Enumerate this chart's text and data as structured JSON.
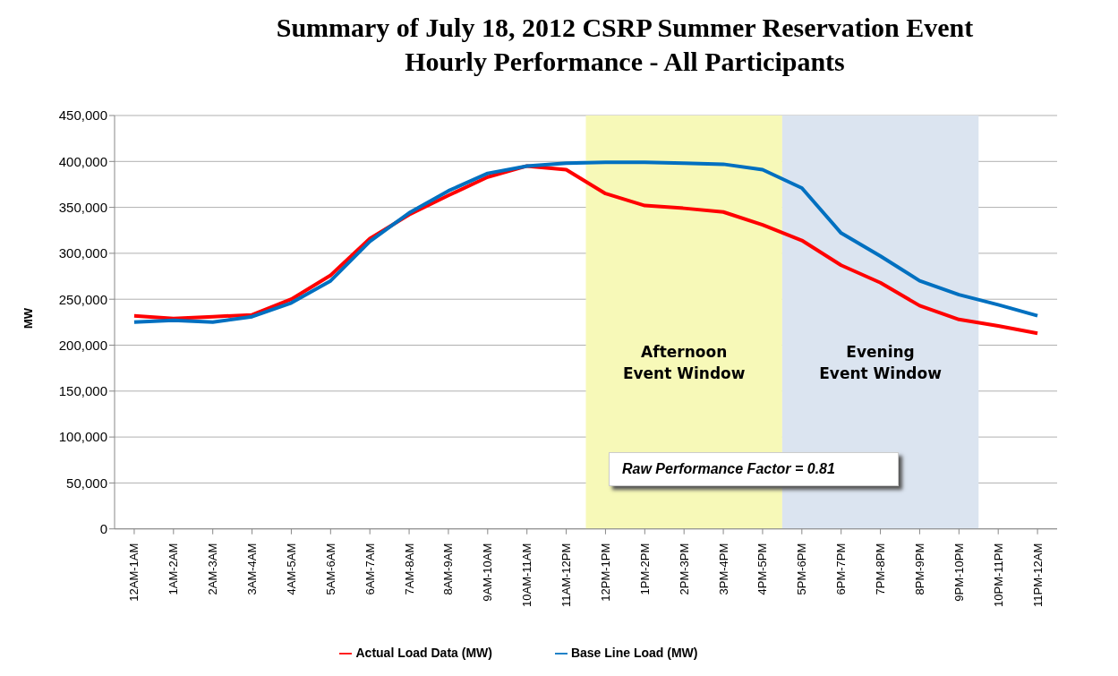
{
  "chart_data": {
    "type": "line",
    "title": "Summary of July 18, 2012 CSRP Summer Reservation Event\nHourly Performance - All Participants",
    "ylabel": "MW",
    "categories": [
      "12AM-1AM",
      "1AM-2AM",
      "2AM-3AM",
      "3AM-4AM",
      "4AM-5AM",
      "5AM-6AM",
      "6AM-7AM",
      "7AM-8AM",
      "8AM-9AM",
      "9AM-10AM",
      "10AM-11AM",
      "11AM-12PM",
      "12PM-1PM",
      "1PM-2PM",
      "2PM-3PM",
      "3PM-4PM",
      "4PM-5PM",
      "5PM-6PM",
      "6PM-7PM",
      "7PM-8PM",
      "8PM-9PM",
      "9PM-10PM",
      "10PM-11PM",
      "11PM-12AM"
    ],
    "series": [
      {
        "name": "Actual Load Data (MW)",
        "color": "#ff0000",
        "values": [
          232000,
          229000,
          231000,
          233000,
          250000,
          276000,
          316000,
          342000,
          363000,
          383000,
          395000,
          391000,
          365000,
          352000,
          349000,
          345000,
          331000,
          314000,
          287000,
          268000,
          243000,
          228000,
          221000,
          213000
        ]
      },
      {
        "name": "Base Line Load (MW)",
        "color": "#0070c0",
        "values": [
          225000,
          227000,
          225000,
          231000,
          246000,
          270000,
          313000,
          344000,
          368000,
          387000,
          395000,
          398000,
          399000,
          399000,
          398000,
          397000,
          391000,
          371000,
          322000,
          297000,
          270000,
          255000,
          244000,
          232000
        ]
      }
    ],
    "ylim": [
      0,
      450000
    ],
    "yticks": [
      {
        "value": 0,
        "label": "0"
      },
      {
        "value": 50000,
        "label": "50,000"
      },
      {
        "value": 100000,
        "label": "100,000"
      },
      {
        "value": 150000,
        "label": "150,000"
      },
      {
        "value": 200000,
        "label": "200,000"
      },
      {
        "value": 250000,
        "label": "250,000"
      },
      {
        "value": 300000,
        "label": "300,000"
      },
      {
        "value": 350000,
        "label": "350,000"
      },
      {
        "value": 400000,
        "label": "400,000"
      },
      {
        "value": 450000,
        "label": "450,000"
      }
    ],
    "grid": "y",
    "legend": "bottom",
    "marker": "none",
    "line_style": "solid",
    "bands": [
      {
        "axis": "x",
        "from": "12PM-1PM",
        "to": "4PM-5PM",
        "label": "Afternoon\nEvent Window",
        "color": "#f7f9b8"
      },
      {
        "axis": "x",
        "from": "5PM-6PM",
        "to": "9PM-10PM",
        "label": "Evening\nEvent Window",
        "color": "#dbe4f0"
      }
    ],
    "annotations": [
      "Raw Performance Factor = 0.81"
    ]
  }
}
